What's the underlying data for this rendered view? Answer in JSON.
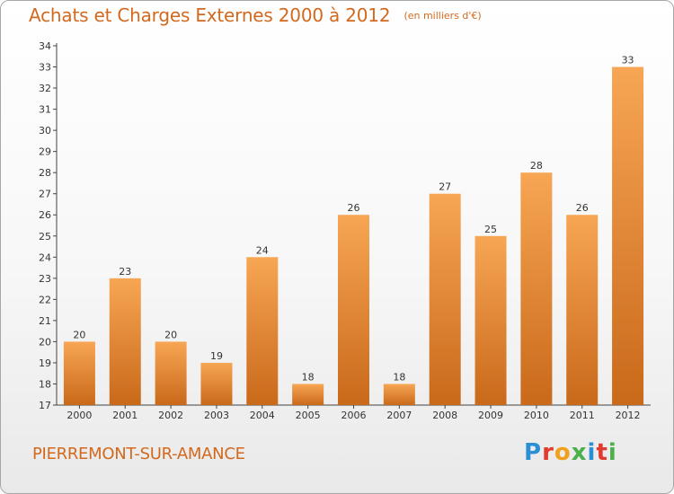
{
  "title": "Achats et Charges Externes 2000 à 2012",
  "unit": "(en milliers d'€)",
  "commune": "PIERREMONT-SUR-AMANCE",
  "logo_text": "Proxiti",
  "colors": {
    "title": "#d2691e",
    "bar_light": "#f7a654",
    "bar_dark": "#c9691a",
    "axis": "#444444"
  },
  "chart_data": {
    "type": "bar",
    "categories": [
      "2000",
      "2001",
      "2002",
      "2003",
      "2004",
      "2005",
      "2006",
      "2007",
      "2008",
      "2009",
      "2010",
      "2011",
      "2012"
    ],
    "values": [
      20,
      23,
      20,
      19,
      24,
      18,
      26,
      18,
      27,
      25,
      28,
      26,
      33
    ],
    "ylim": [
      17,
      34
    ],
    "yticks": [
      17,
      18,
      19,
      20,
      21,
      22,
      23,
      24,
      25,
      26,
      27,
      28,
      29,
      30,
      31,
      32,
      33,
      34
    ],
    "grid": false,
    "data_labels": true
  }
}
